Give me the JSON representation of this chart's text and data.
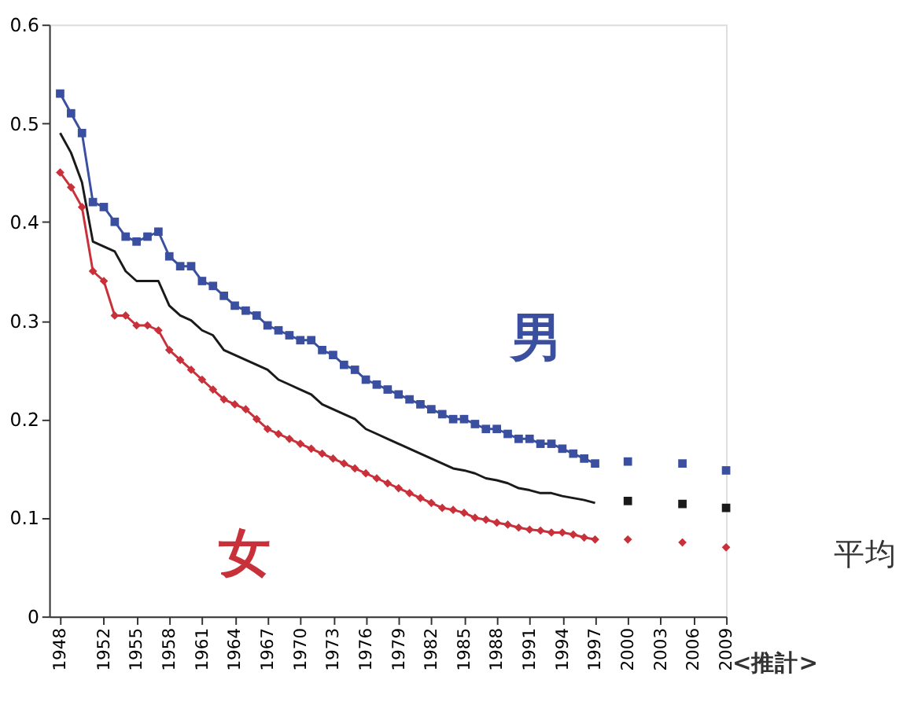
{
  "chart_data": {
    "type": "line",
    "xlim": [
      1947,
      2009
    ],
    "xticks": [
      1948,
      1952,
      1955,
      1958,
      1961,
      1964,
      1967,
      1970,
      1973,
      1976,
      1979,
      1982,
      1985,
      1988,
      1991,
      1994,
      1997,
      2000,
      2003,
      2006,
      2009
    ],
    "ylim": [
      0,
      0.6
    ],
    "yticks": [
      0,
      0.1,
      0.2,
      0.3,
      0.4,
      0.5,
      0.6
    ],
    "grid": false,
    "annotations": [
      "<推計>"
    ],
    "series": [
      {
        "name": "男",
        "marker": "square",
        "color": "#3a4fa0",
        "x": [
          1948,
          1949,
          1950,
          1951,
          1952,
          1953,
          1954,
          1955,
          1956,
          1957,
          1958,
          1959,
          1960,
          1961,
          1962,
          1963,
          1964,
          1965,
          1966,
          1967,
          1968,
          1969,
          1970,
          1971,
          1972,
          1973,
          1974,
          1975,
          1976,
          1977,
          1978,
          1979,
          1980,
          1981,
          1982,
          1983,
          1984,
          1985,
          1986,
          1987,
          1988,
          1989,
          1990,
          1991,
          1992,
          1993,
          1994,
          1995,
          1996,
          1997
        ],
        "values": [
          0.53,
          0.51,
          0.49,
          0.42,
          0.415,
          0.4,
          0.385,
          0.38,
          0.385,
          0.39,
          0.365,
          0.355,
          0.355,
          0.34,
          0.335,
          0.325,
          0.315,
          0.31,
          0.305,
          0.295,
          0.29,
          0.285,
          0.28,
          0.28,
          0.27,
          0.265,
          0.255,
          0.25,
          0.24,
          0.235,
          0.23,
          0.225,
          0.22,
          0.215,
          0.21,
          0.205,
          0.2,
          0.2,
          0.195,
          0.19,
          0.19,
          0.185,
          0.18,
          0.18,
          0.175,
          0.175,
          0.17,
          0.165,
          0.16,
          0.155
        ]
      },
      {
        "name": "平均",
        "marker": "none",
        "color": "#1a1a1a",
        "x": [
          1948,
          1949,
          1950,
          1951,
          1952,
          1953,
          1954,
          1955,
          1956,
          1957,
          1958,
          1959,
          1960,
          1961,
          1962,
          1963,
          1964,
          1965,
          1966,
          1967,
          1968,
          1969,
          1970,
          1971,
          1972,
          1973,
          1974,
          1975,
          1976,
          1977,
          1978,
          1979,
          1980,
          1981,
          1982,
          1983,
          1984,
          1985,
          1986,
          1987,
          1988,
          1989,
          1990,
          1991,
          1992,
          1993,
          1994,
          1995,
          1996,
          1997
        ],
        "values": [
          0.49,
          0.47,
          0.44,
          0.38,
          0.375,
          0.37,
          0.35,
          0.34,
          0.34,
          0.34,
          0.315,
          0.305,
          0.3,
          0.29,
          0.285,
          0.27,
          0.265,
          0.26,
          0.255,
          0.25,
          0.24,
          0.235,
          0.23,
          0.225,
          0.215,
          0.21,
          0.205,
          0.2,
          0.19,
          0.185,
          0.18,
          0.175,
          0.17,
          0.165,
          0.16,
          0.155,
          0.15,
          0.148,
          0.145,
          0.14,
          0.138,
          0.135,
          0.13,
          0.128,
          0.125,
          0.125,
          0.122,
          0.12,
          0.118,
          0.115
        ]
      },
      {
        "name": "女",
        "marker": "diamond",
        "color": "#c8303a",
        "x": [
          1948,
          1949,
          1950,
          1951,
          1952,
          1953,
          1954,
          1955,
          1956,
          1957,
          1958,
          1959,
          1960,
          1961,
          1962,
          1963,
          1964,
          1965,
          1966,
          1967,
          1968,
          1969,
          1970,
          1971,
          1972,
          1973,
          1974,
          1975,
          1976,
          1977,
          1978,
          1979,
          1980,
          1981,
          1982,
          1983,
          1984,
          1985,
          1986,
          1987,
          1988,
          1989,
          1990,
          1991,
          1992,
          1993,
          1994,
          1995,
          1996,
          1997
        ],
        "values": [
          0.45,
          0.435,
          0.415,
          0.35,
          0.34,
          0.305,
          0.305,
          0.295,
          0.295,
          0.29,
          0.27,
          0.26,
          0.25,
          0.24,
          0.23,
          0.22,
          0.215,
          0.21,
          0.2,
          0.19,
          0.185,
          0.18,
          0.175,
          0.17,
          0.165,
          0.16,
          0.155,
          0.15,
          0.145,
          0.14,
          0.135,
          0.13,
          0.125,
          0.12,
          0.115,
          0.11,
          0.108,
          0.105,
          0.1,
          0.098,
          0.095,
          0.093,
          0.09,
          0.088,
          0.087,
          0.085,
          0.085,
          0.083,
          0.08,
          0.078
        ]
      },
      {
        "type": "scatter",
        "marker": "square",
        "color": "#3a4fa0",
        "x": [
          2000,
          2005,
          2009
        ],
        "values": [
          0.157,
          0.155,
          0.148
        ]
      },
      {
        "type": "scatter",
        "marker": "square",
        "color": "#1a1a1a",
        "x": [
          2000,
          2005,
          2009
        ],
        "values": [
          0.117,
          0.114,
          0.11
        ]
      },
      {
        "type": "scatter",
        "marker": "diamond",
        "color": "#c8303a",
        "x": [
          2000,
          2005,
          2009
        ],
        "values": [
          0.078,
          0.075,
          0.07
        ]
      }
    ]
  }
}
